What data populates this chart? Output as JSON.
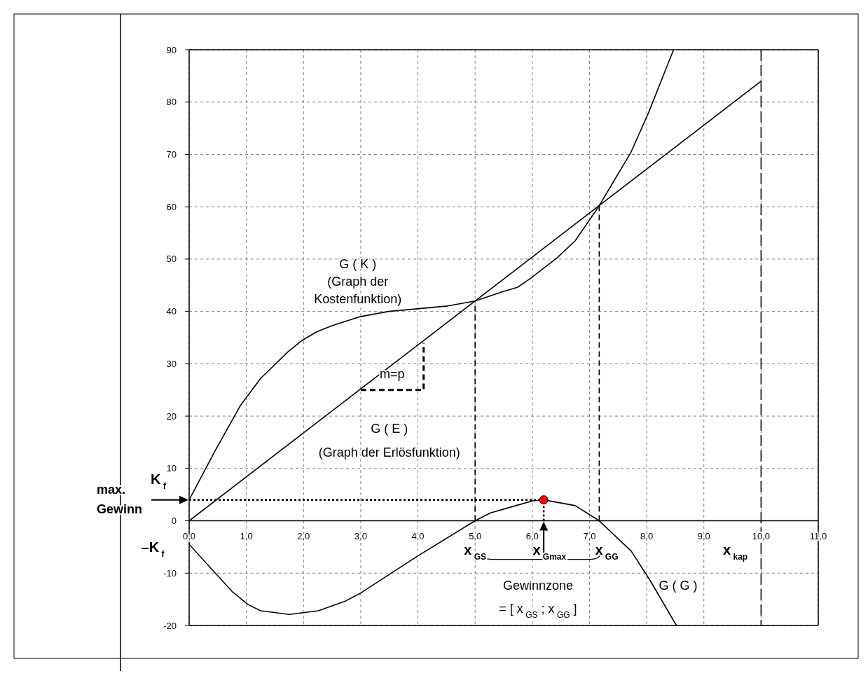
{
  "chart_data": {
    "type": "line",
    "xlim": [
      0,
      11
    ],
    "ylim": [
      -20,
      90
    ],
    "xticks": [
      {
        "value": 0,
        "label": "0,0"
      },
      {
        "value": 1,
        "label": "1,0"
      },
      {
        "value": 2,
        "label": "2,0"
      },
      {
        "value": 3,
        "label": "3,0"
      },
      {
        "value": 4,
        "label": "4,0"
      },
      {
        "value": 5,
        "label": "5,0"
      },
      {
        "value": 6,
        "label": "6,0"
      },
      {
        "value": 7,
        "label": "7,0"
      },
      {
        "value": 8,
        "label": "8,0"
      },
      {
        "value": 9,
        "label": "9,0"
      },
      {
        "value": 10,
        "label": "10,0"
      },
      {
        "value": 11,
        "label": "11,0"
      }
    ],
    "yticks": [
      -20,
      -10,
      0,
      10,
      20,
      30,
      40,
      50,
      60,
      70,
      80,
      90
    ],
    "grid": true,
    "line_style": "solid",
    "series": [
      {
        "color": "#000000",
        "x": [
          0,
          0.45,
          0.9,
          1.25,
          1.73,
          1.98,
          2.23,
          2.48,
          2.99,
          3.49,
          4.49,
          5.0,
          5.49,
          5.74,
          5.98,
          6.43,
          6.75,
          7.17,
          7.72,
          8.03,
          8.47
        ],
        "values": [
          4,
          13.3,
          22.1,
          27.2,
          32.3,
          34.5,
          36.1,
          37.2,
          39.0,
          40.0,
          41.0,
          42.0,
          43.8,
          44.6,
          46.4,
          50.2,
          53.5,
          60.2,
          70.3,
          77.9,
          90
        ]
      },
      {
        "color": "#000000",
        "x": [
          0,
          10
        ],
        "values": [
          0,
          84
        ]
      },
      {
        "color": "#000000",
        "x": [
          0,
          0.76,
          1.03,
          1.25,
          1.75,
          2.26,
          2.74,
          3.0,
          4.0,
          5.0,
          5.27,
          5.65,
          6.0,
          6.2,
          6.75,
          7.17,
          7.73,
          8.06,
          8.52
        ],
        "values": [
          -4.5,
          -13.6,
          -16.0,
          -17.2,
          -17.9,
          -17.2,
          -15.3,
          -13.8,
          -6.7,
          0,
          1.5,
          2.7,
          3.8,
          4.0,
          2.9,
          0,
          -5.8,
          -11.4,
          -20
        ]
      },
      {
        "color": "#000000",
        "x": [
          5,
          5
        ],
        "values": [
          0,
          42
        ],
        "line_style": "dashed"
      },
      {
        "color": "#000000",
        "x": [
          7.17,
          7.17
        ],
        "values": [
          0,
          60.2
        ],
        "line_style": "dashed"
      },
      {
        "color": "#000000",
        "x": [
          0,
          6.2
        ],
        "values": [
          4,
          4
        ],
        "line_style": "dotted"
      },
      {
        "color": "#000000",
        "x": [
          6.2,
          6.2
        ],
        "values": [
          0,
          4
        ],
        "line_style": "dotted"
      },
      {
        "color": "#000000",
        "x": [
          3,
          4.1,
          4.1
        ],
        "values": [
          25,
          25,
          34
        ],
        "line_style": "dashed"
      },
      {
        "type": "scatter",
        "color": "#ff0000",
        "x": [
          6.2
        ],
        "values": [
          4
        ],
        "marker": "circle"
      }
    ],
    "ref_lines": [
      {
        "axis": "x",
        "value": 10,
        "line_style": "dashed"
      }
    ],
    "annotations": [
      "G ( K )",
      "(Graph der",
      "Kostenfunktion)",
      "m=p",
      "G ( E )",
      "(Graph der Erlösfunktion)",
      "x$_{GS}$",
      "x$_{Gmax}$",
      "x$_{GG}$",
      "x$_{kap}$",
      "Gewinnzone",
      "= [ x$_{GS}$ ; x$_{GG}$ ]",
      "G ( G )",
      "K$_{f}$",
      "max. Gewinn",
      "–K$_{f}$"
    ]
  }
}
